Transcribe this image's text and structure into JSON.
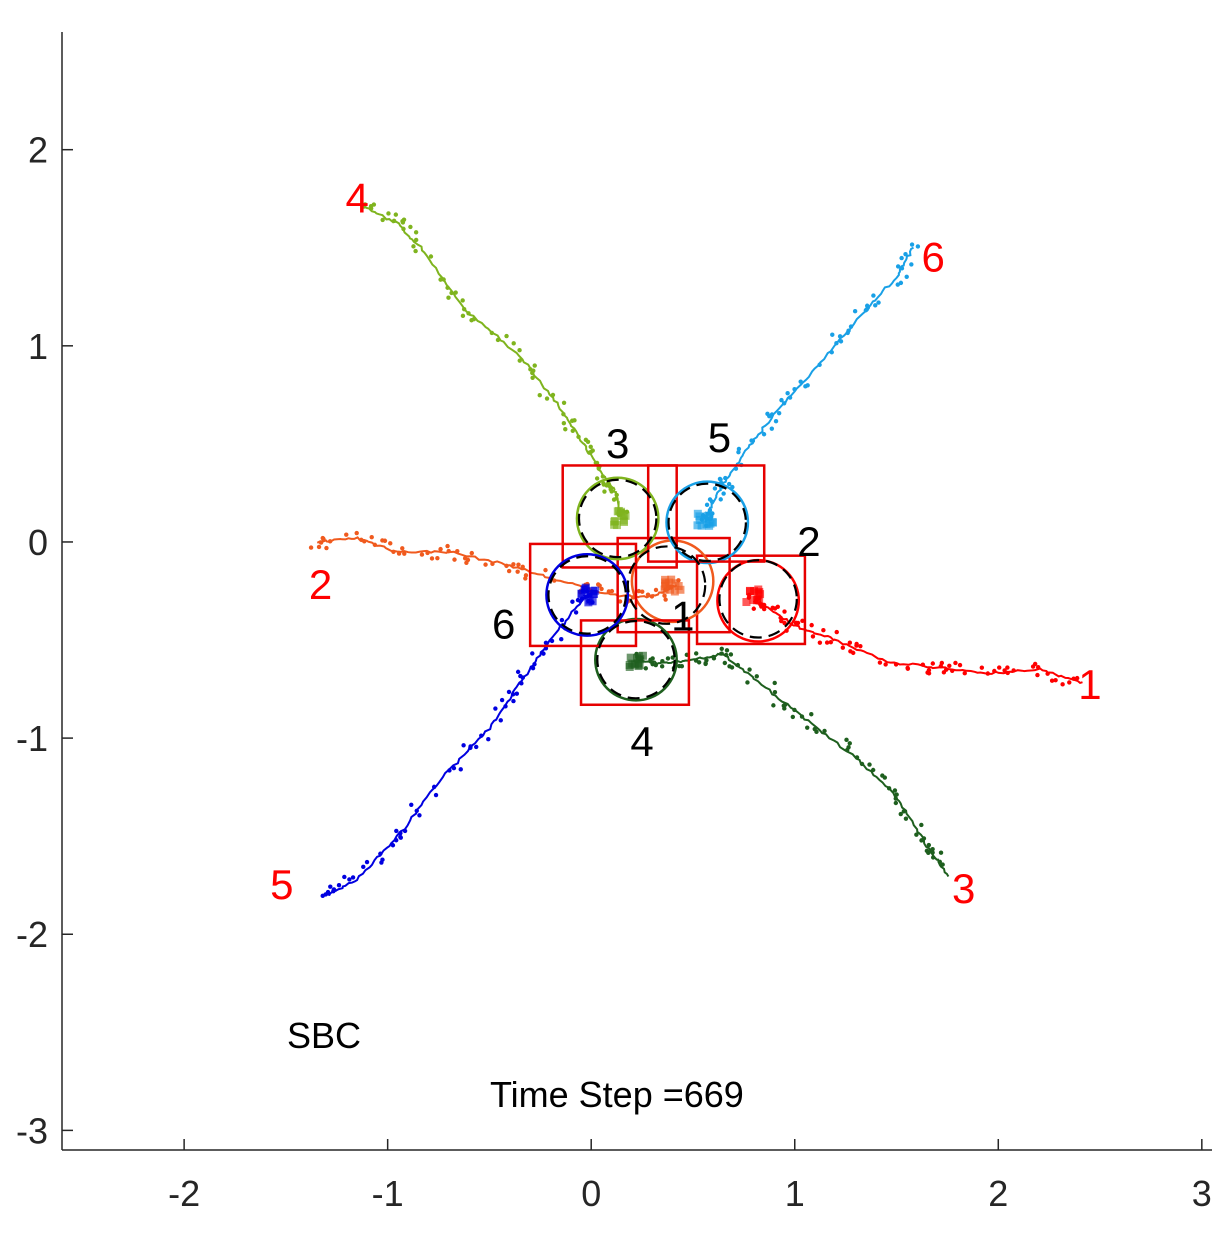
{
  "chart_data": {
    "type": "scatter",
    "xlim": [
      -2.6,
      3.05
    ],
    "ylim": [
      -3.1,
      2.6
    ],
    "xticks": [
      -2,
      -1,
      0,
      1,
      2,
      3
    ],
    "yticks": [
      -3,
      -2,
      -1,
      0,
      1,
      2
    ],
    "xtick_labels": [
      "-2",
      "-1",
      "0",
      "1",
      "2",
      "3"
    ],
    "ytick_labels": [
      "-3",
      "-2",
      "-1",
      "0",
      "1",
      "2"
    ],
    "grid": false,
    "annotations": {
      "method": "SBC",
      "time_step": "Time Step =669"
    },
    "agents": [
      {
        "id": 1,
        "color": "#ff0000",
        "start_label": "1",
        "start_label_pos": [
          2.45,
          -0.73
        ],
        "path": [
          [
            2.42,
            -0.72
          ],
          [
            2.2,
            -0.65
          ],
          [
            1.95,
            -0.67
          ],
          [
            1.7,
            -0.64
          ],
          [
            1.45,
            -0.61
          ],
          [
            1.2,
            -0.5
          ],
          [
            1.0,
            -0.43
          ],
          [
            0.85,
            -0.32
          ],
          [
            0.8,
            -0.3
          ]
        ],
        "current": [
          0.8,
          -0.28
        ],
        "region_center": [
          0.82,
          -0.3
        ],
        "box": [
          [
            0.52,
            -0.07
          ],
          [
            1.05,
            -0.52
          ]
        ]
      },
      {
        "id": 2,
        "color": "#f05a1e",
        "start_label": "2",
        "start_label_pos": [
          -1.33,
          -0.22
        ],
        "path": [
          [
            -1.35,
            0.0
          ],
          [
            -1.15,
            0.02
          ],
          [
            -0.95,
            -0.05
          ],
          [
            -0.7,
            -0.05
          ],
          [
            -0.4,
            -0.12
          ],
          [
            -0.15,
            -0.2
          ],
          [
            0.1,
            -0.27
          ],
          [
            0.3,
            -0.28
          ],
          [
            0.42,
            -0.22
          ]
        ],
        "current": [
          0.4,
          -0.22
        ],
        "region_center": [
          0.4,
          -0.2
        ],
        "box": [
          [
            0.13,
            0.02
          ],
          [
            0.68,
            -0.46
          ]
        ]
      },
      {
        "id": 3,
        "color": "#1e5f1e",
        "start_label": "3",
        "start_label_pos": [
          1.83,
          -1.77
        ],
        "path": [
          [
            1.75,
            -1.7
          ],
          [
            1.65,
            -1.55
          ],
          [
            1.5,
            -1.3
          ],
          [
            1.3,
            -1.1
          ],
          [
            1.05,
            -0.9
          ],
          [
            0.8,
            -0.7
          ],
          [
            0.65,
            -0.57
          ],
          [
            0.5,
            -0.6
          ],
          [
            0.35,
            -0.62
          ],
          [
            0.22,
            -0.6
          ]
        ],
        "current": [
          0.22,
          -0.6
        ],
        "region_center": [
          0.22,
          -0.6
        ],
        "box": [
          [
            -0.05,
            -0.4
          ],
          [
            0.48,
            -0.83
          ]
        ]
      },
      {
        "id": 4,
        "color": "#7fb41e",
        "start_label": "4",
        "start_label_pos": [
          -1.15,
          1.75
        ],
        "path": [
          [
            -1.13,
            1.72
          ],
          [
            -0.95,
            1.62
          ],
          [
            -0.82,
            1.48
          ],
          [
            -0.62,
            1.18
          ],
          [
            -0.35,
            0.95
          ],
          [
            -0.18,
            0.72
          ],
          [
            -0.05,
            0.52
          ],
          [
            0.05,
            0.35
          ],
          [
            0.12,
            0.25
          ],
          [
            0.15,
            0.13
          ]
        ],
        "current": [
          0.13,
          0.12
        ],
        "region_center": [
          0.13,
          0.12
        ],
        "box": [
          [
            -0.14,
            0.39
          ],
          [
            0.42,
            -0.13
          ]
        ]
      },
      {
        "id": 5,
        "color": "#0000e0",
        "start_label": "5",
        "start_label_pos": [
          -1.52,
          -1.75
        ],
        "path": [
          [
            -1.3,
            -1.8
          ],
          [
            -1.15,
            -1.72
          ],
          [
            -0.95,
            -1.5
          ],
          [
            -0.75,
            -1.22
          ],
          [
            -0.5,
            -0.95
          ],
          [
            -0.35,
            -0.72
          ],
          [
            -0.2,
            -0.5
          ],
          [
            -0.05,
            -0.3
          ],
          [
            -0.02,
            -0.27
          ]
        ],
        "current": [
          -0.02,
          -0.27
        ],
        "region_center": [
          -0.02,
          -0.27
        ],
        "box": [
          [
            -0.3,
            -0.01
          ],
          [
            0.22,
            -0.53
          ]
        ]
      },
      {
        "id": 6,
        "color": "#19a0e6",
        "start_label": "6",
        "start_label_pos": [
          1.68,
          1.45
        ],
        "path": [
          [
            1.58,
            1.5
          ],
          [
            1.5,
            1.35
          ],
          [
            1.32,
            1.15
          ],
          [
            1.1,
            0.88
          ],
          [
            0.9,
            0.65
          ],
          [
            0.75,
            0.45
          ],
          [
            0.65,
            0.3
          ],
          [
            0.57,
            0.15
          ],
          [
            0.56,
            0.1
          ]
        ],
        "current": [
          0.56,
          0.12
        ],
        "region_center": [
          0.57,
          0.1
        ],
        "box": [
          [
            0.28,
            0.39
          ],
          [
            0.85,
            -0.1
          ]
        ]
      }
    ],
    "goals": [
      {
        "label": "1",
        "pos": [
          0.37,
          -0.22
        ],
        "label_pos": [
          0.45,
          -0.38
        ]
      },
      {
        "label": "2",
        "pos": [
          0.82,
          -0.29
        ],
        "label_pos": [
          1.07,
          0.0
        ]
      },
      {
        "label": "3",
        "pos": [
          0.13,
          0.12
        ],
        "label_pos": [
          0.13,
          0.5
        ]
      },
      {
        "label": "4",
        "pos": [
          0.22,
          -0.6
        ],
        "label_pos": [
          0.25,
          -1.02
        ]
      },
      {
        "label": "5",
        "pos": [
          0.57,
          0.1
        ],
        "label_pos": [
          0.63,
          0.53
        ]
      },
      {
        "label": "6",
        "pos": [
          -0.02,
          -0.27
        ],
        "label_pos": [
          -0.43,
          -0.42
        ]
      }
    ],
    "goal_radius": 0.19,
    "agent_radius": 0.2
  }
}
